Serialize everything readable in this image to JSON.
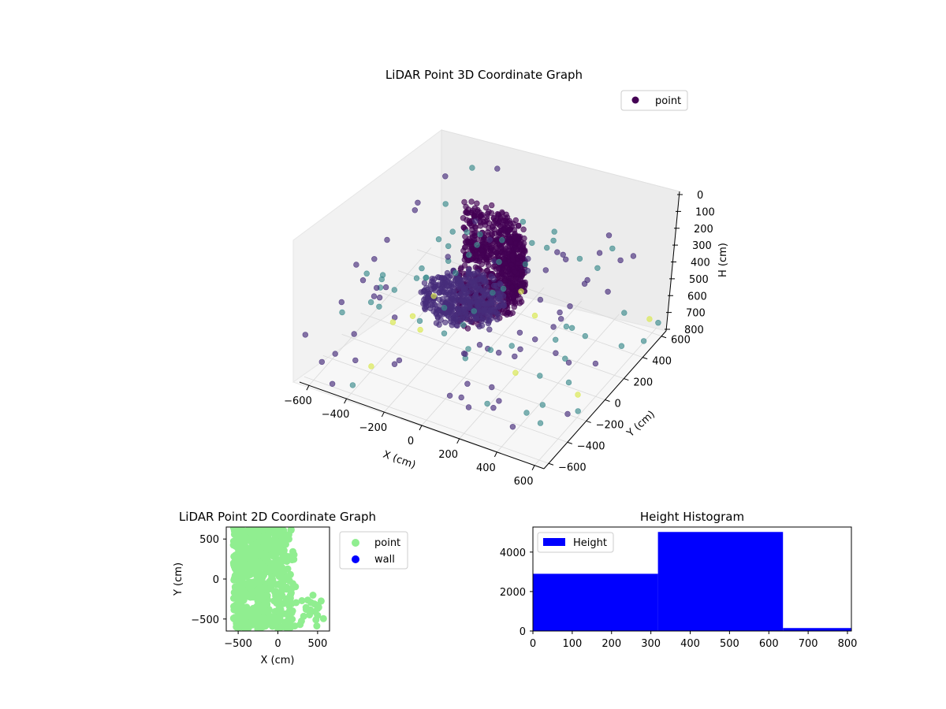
{
  "colors": {
    "viridis_dark": "#440154",
    "viridis_mid": "#472d7b",
    "viridis_teal": "#3b8b8c",
    "viridis_yellow": "#d9e84a",
    "point_2d": "#90ee90",
    "wall_2d": "#0000ff",
    "hist_bar": "#0000ff"
  },
  "chart_data": [
    {
      "type": "scatter",
      "projection": "3d",
      "title": "LiDAR Point 3D Coordinate Graph",
      "xlabel": "X (cm)",
      "ylabel": "Y (cm)",
      "zlabel": "H (cm)",
      "xticks": [
        "−600",
        "−400",
        "−200",
        "0",
        "200",
        "400",
        "600"
      ],
      "yticks": [
        "−600",
        "−400",
        "−200",
        "0",
        "200",
        "400",
        "600"
      ],
      "zticks": [
        "0",
        "100",
        "200",
        "300",
        "400",
        "500",
        "600",
        "700",
        "800"
      ],
      "xlim": [
        -650,
        650
      ],
      "ylim": [
        -650,
        650
      ],
      "zlim": [
        820,
        0
      ],
      "zaxis_inverted": true,
      "legend": {
        "entries": [
          "point"
        ],
        "placement": "upper-right"
      },
      "colormap": "viridis",
      "description_of_points": "dense curved band of points around the origin (radius roughly 200–350 cm) at heights ~200–550 cm plus sparse outliers across the room",
      "grid": true
    },
    {
      "type": "scatter",
      "title": "LiDAR Point 2D Coordinate Graph",
      "xlabel": "X (cm)",
      "ylabel": "Y (cm)",
      "xticks": [
        "−500",
        "0",
        "500"
      ],
      "yticks": [
        "−500",
        "0",
        "500"
      ],
      "xlim": [
        -650,
        650
      ],
      "ylim": [
        -650,
        650
      ],
      "series": [
        {
          "name": "point",
          "color": "#90ee90"
        },
        {
          "name": "wall",
          "color": "#0000ff"
        }
      ],
      "legend": {
        "entries": [
          "point",
          "wall"
        ],
        "placement": "outside-right"
      },
      "grid": false
    },
    {
      "type": "bar",
      "subtype": "histogram",
      "title": "Height Histogram",
      "xlabel": "",
      "ylabel": "",
      "bins": [
        [
          0,
          318
        ],
        [
          318,
          636
        ],
        [
          636,
          810
        ]
      ],
      "values": [
        2900,
        5020,
        150
      ],
      "xlim": [
        0,
        810
      ],
      "ylim": [
        0,
        5270
      ],
      "xticks": [
        "0",
        "100",
        "200",
        "300",
        "400",
        "500",
        "600",
        "700",
        "800"
      ],
      "yticks": [
        "0",
        "2000",
        "4000"
      ],
      "legend": {
        "entries": [
          "Height"
        ],
        "placement": "upper-left"
      },
      "grid": false
    }
  ]
}
